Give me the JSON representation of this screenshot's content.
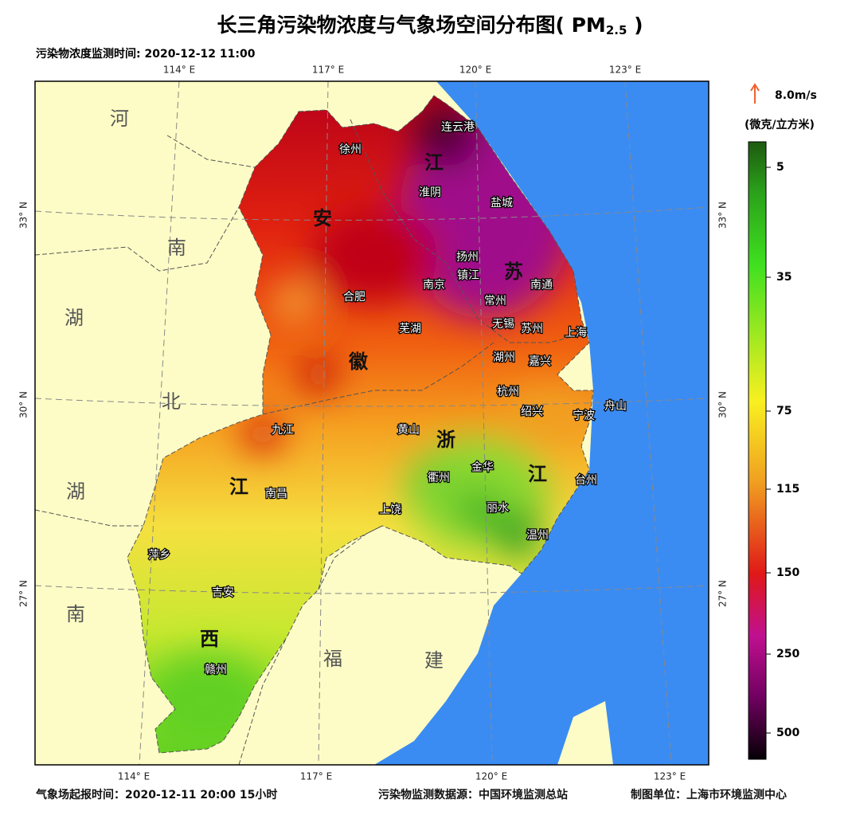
{
  "header": {
    "title_main": "长三角污染物浓度与气象场空间分布图( PM",
    "title_sub": "2.5",
    "title_end": " )",
    "monitor_time": "污染物浓度监测时间: 2020-12-12 11:00"
  },
  "axes": {
    "longitudes": [
      "114° E",
      "117° E",
      "120° E",
      "123° E"
    ],
    "latitudes": [
      "33° N",
      "30° N",
      "27° N"
    ]
  },
  "provinces": [
    "河",
    "南",
    "湖",
    "北",
    "湖",
    "南",
    "安",
    "徽",
    "江",
    "苏",
    "浙",
    "江",
    "江",
    "西",
    "福",
    "建"
  ],
  "cities": [
    "连云港",
    "徐州",
    "淮阴",
    "盐城",
    "扬州",
    "镇江",
    "南京",
    "南通",
    "常州",
    "合肥",
    "无锡",
    "苏州",
    "上海",
    "芜湖",
    "湖州",
    "嘉兴",
    "杭州",
    "绍兴",
    "宁波",
    "舟山",
    "九江",
    "黄山",
    "衢州",
    "金华",
    "台州",
    "南昌",
    "上饶",
    "丽水",
    "温州",
    "萍乡",
    "吉安",
    "赣州"
  ],
  "legend": {
    "wind": "8.0m/s",
    "unit": "(微克/立方米)",
    "ticks": [
      5,
      35,
      75,
      115,
      150,
      250,
      500
    ]
  },
  "footer": {
    "forecast_time": "气象场起报时间：2020-12-11 20:00 15小时",
    "source": "污染物监测数据源：中国环境监测总站",
    "maker": "制图单位：上海市环境监测中心"
  }
}
